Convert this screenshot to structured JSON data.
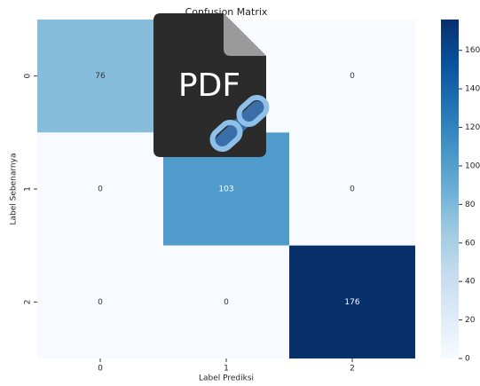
{
  "chart_data": {
    "type": "heatmap",
    "title": "Confusion Matrix",
    "x_label": "Label Prediksi",
    "y_label": "Label Sebenarnya",
    "x_categories": [
      "0",
      "1",
      "2"
    ],
    "y_categories": [
      "0",
      "1",
      "2"
    ],
    "values": [
      [
        76,
        0,
        0
      ],
      [
        0,
        103,
        0
      ],
      [
        0,
        0,
        176
      ]
    ],
    "colormap": "Blues",
    "zlim": [
      0,
      176
    ],
    "colorbar_ticks": [
      0,
      20,
      40,
      60,
      80,
      100,
      120,
      140,
      160
    ]
  },
  "overlay_icon": {
    "label": "PDF"
  }
}
